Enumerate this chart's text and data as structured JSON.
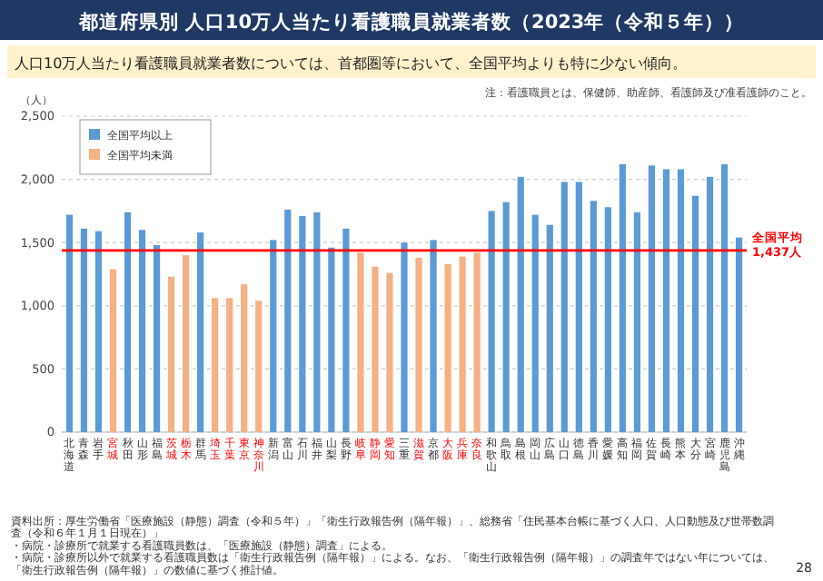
{
  "chart_data": {
    "type": "bar",
    "title": "都道府県別 人口10万人当たり看護職員就業者数（2023年（令和５年））",
    "subtitle": "人口10万人当たり看護職員就業者数については、首都圏等において、全国平均よりも特に少ない傾向。",
    "ylabel": "（人）",
    "categories": [
      "北海道",
      "青森",
      "岩手",
      "宮城",
      "秋田",
      "山形",
      "福島",
      "茨城",
      "栃木",
      "群馬",
      "埼玉",
      "千葉",
      "東京",
      "神奈川",
      "新潟",
      "富山",
      "石川",
      "福井",
      "山梨",
      "長野",
      "岐阜",
      "静岡",
      "愛知",
      "三重",
      "滋賀",
      "京都",
      "大阪",
      "兵庫",
      "奈良",
      "和歌山",
      "鳥取",
      "島根",
      "岡山",
      "広島",
      "山口",
      "徳島",
      "香川",
      "愛媛",
      "高知",
      "福岡",
      "佐賀",
      "長崎",
      "熊本",
      "大分",
      "宮崎",
      "鹿児島",
      "沖縄"
    ],
    "series": [
      {
        "name": "全国平均以上",
        "color": "#5b9bd5",
        "values": [
          1720,
          1610,
          1590,
          null,
          1740,
          1600,
          1480,
          null,
          null,
          1580,
          null,
          null,
          null,
          null,
          1520,
          1760,
          1710,
          1740,
          1460,
          1610,
          null,
          null,
          null,
          1500,
          null,
          1520,
          null,
          null,
          null,
          1750,
          1820,
          2020,
          1720,
          1640,
          1980,
          1980,
          1830,
          1780,
          2120,
          1740,
          2110,
          2080,
          2080,
          1870,
          2020,
          2120,
          1540
        ]
      },
      {
        "name": "全国平均未満",
        "color": "#f4b183",
        "values": [
          null,
          null,
          null,
          1290,
          null,
          null,
          null,
          1230,
          1400,
          null,
          1060,
          1060,
          1170,
          1040,
          null,
          null,
          null,
          null,
          null,
          null,
          1420,
          1310,
          1260,
          null,
          1380,
          null,
          1330,
          1390,
          1420,
          null,
          null,
          null,
          null,
          null,
          null,
          null,
          null,
          null,
          null,
          null,
          null,
          null,
          null,
          null,
          null,
          null,
          null
        ]
      }
    ],
    "ylim": [
      0,
      2500
    ],
    "yticks": [
      0,
      {
        "value": 500,
        "label": "500"
      },
      {
        "value": 1000,
        "label": "1,000"
      },
      {
        "value": 1500,
        "label": "1,500"
      },
      {
        "value": 2000,
        "label": "2,000"
      },
      {
        "value": 2500,
        "label": "2,500"
      }
    ],
    "grid": "y",
    "legend": "top left",
    "ref_lines": [
      {
        "axis": "y",
        "value": 1437,
        "label": "全国平均\n1,437人",
        "color": "#ff0000"
      }
    ],
    "annotations": [
      "注：看護職員とは、保健師、助産師、看護師及び准看護師のこと。",
      "資料出所：厚生労働省「医療施設（静態）調査（令和５年）」「衛生行政報告例（隔年報）」、総務省「住民基本台帳に基づく人口、人口動態及び世帯数調査（令和６年１月１日現在）」",
      "・病院・診療所で就業する看護職員数は、「医療施設（静態）調査」による。",
      "・病院・診療所以外で就業する看護職員数は「衛生行政報告例（隔年報）」による。なお、「衛生行政報告例（隔年報）」の調査年ではない年については、「衛生行政報告例（隔年報）」の数値に基づく推計値。",
      "28"
    ]
  }
}
